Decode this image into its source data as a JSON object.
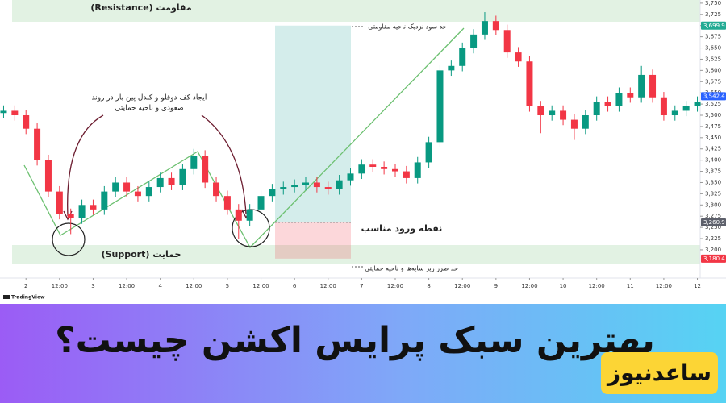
{
  "chart_data": {
    "type": "candlestick",
    "x": [
      -8,
      -4,
      0,
      4,
      8,
      12,
      16,
      20,
      24,
      28,
      32,
      36,
      40,
      44,
      48,
      52,
      56,
      60,
      64,
      68,
      72,
      76,
      80,
      84,
      88,
      92,
      96,
      100,
      104,
      108,
      112,
      116,
      120,
      124,
      128,
      132,
      136,
      140,
      144,
      148,
      152,
      156,
      160,
      164,
      168,
      172,
      176,
      180,
      184,
      188,
      192,
      196,
      200,
      204,
      208,
      212,
      216,
      220,
      224,
      228,
      232,
      236,
      240
    ],
    "open": [
      3505,
      3510,
      3500,
      3470,
      3400,
      3330,
      3280,
      3270,
      3300,
      3290,
      3330,
      3350,
      3330,
      3320,
      3340,
      3360,
      3345,
      3380,
      3410,
      3350,
      3320,
      3290,
      3265,
      3290,
      3320,
      3335,
      3340,
      3345,
      3350,
      3340,
      3335,
      3355,
      3370,
      3390,
      3385,
      3380,
      3375,
      3360,
      3395,
      3440,
      3600,
      3610,
      3650,
      3680,
      3710,
      3690,
      3640,
      3620,
      3520,
      3500,
      3510,
      3490,
      3470,
      3500,
      3530,
      3520,
      3550,
      3540,
      3590,
      3540,
      3500,
      3510,
      3520
    ],
    "high": [
      3522,
      3522,
      3512,
      3482,
      3412,
      3342,
      3292,
      3312,
      3312,
      3342,
      3362,
      3362,
      3342,
      3352,
      3372,
      3372,
      3392,
      3425,
      3422,
      3362,
      3332,
      3302,
      3302,
      3332,
      3347,
      3352,
      3357,
      3362,
      3362,
      3352,
      3367,
      3382,
      3402,
      3402,
      3397,
      3392,
      3387,
      3407,
      3452,
      3612,
      3622,
      3662,
      3692,
      3730,
      3722,
      3702,
      3652,
      3632,
      3532,
      3522,
      3522,
      3502,
      3512,
      3542,
      3542,
      3562,
      3562,
      3610,
      3602,
      3552,
      3522,
      3532,
      3542
    ],
    "low": [
      3493,
      3488,
      3458,
      3388,
      3318,
      3268,
      3235,
      3258,
      3278,
      3278,
      3318,
      3318,
      3308,
      3308,
      3328,
      3333,
      3333,
      3368,
      3338,
      3308,
      3278,
      3225,
      3253,
      3278,
      3308,
      3323,
      3328,
      3333,
      3328,
      3323,
      3323,
      3343,
      3358,
      3373,
      3368,
      3363,
      3348,
      3348,
      3383,
      3428,
      3588,
      3598,
      3638,
      3668,
      3678,
      3628,
      3608,
      3508,
      3460,
      3488,
      3478,
      3445,
      3458,
      3488,
      3508,
      3508,
      3528,
      3528,
      3528,
      3488,
      3488,
      3498,
      3508
    ],
    "close": [
      3510,
      3500,
      3470,
      3400,
      3330,
      3280,
      3270,
      3300,
      3290,
      3330,
      3350,
      3330,
      3320,
      3340,
      3360,
      3345,
      3380,
      3410,
      3350,
      3320,
      3290,
      3265,
      3290,
      3320,
      3335,
      3340,
      3345,
      3350,
      3340,
      3335,
      3355,
      3370,
      3390,
      3385,
      3380,
      3375,
      3360,
      3395,
      3440,
      3600,
      3610,
      3650,
      3680,
      3710,
      3690,
      3640,
      3620,
      3520,
      3500,
      3510,
      3490,
      3470,
      3500,
      3530,
      3520,
      3550,
      3540,
      3590,
      3540,
      3500,
      3510,
      3520,
      3530
    ],
    "up_color": "#089981",
    "down_color": "#f23645",
    "xlim": [
      -9,
      241
    ],
    "xticks": [
      {
        "value": 0,
        "label": "2"
      },
      {
        "value": 12,
        "label": "12:00"
      },
      {
        "value": 24,
        "label": "3"
      },
      {
        "value": 36,
        "label": "12:00"
      },
      {
        "value": 48,
        "label": "4"
      },
      {
        "value": 60,
        "label": "12:00"
      },
      {
        "value": 72,
        "label": "5"
      },
      {
        "value": 84,
        "label": "12:00"
      },
      {
        "value": 96,
        "label": "6"
      },
      {
        "value": 108,
        "label": "12:00"
      },
      {
        "value": 120,
        "label": "7"
      },
      {
        "value": 132,
        "label": "12:00"
      },
      {
        "value": 144,
        "label": "8"
      },
      {
        "value": 156,
        "label": "12:00"
      },
      {
        "value": 168,
        "label": "9"
      },
      {
        "value": 180,
        "label": "12:00"
      },
      {
        "value": 192,
        "label": "10"
      },
      {
        "value": 204,
        "label": "12:00"
      },
      {
        "value": 216,
        "label": "11"
      },
      {
        "value": 228,
        "label": "12:00"
      },
      {
        "value": 240,
        "label": "12"
      }
    ],
    "ylim": [
      3137,
      3757
    ],
    "yticks": [
      {
        "value": 3200,
        "label": "3,200"
      },
      {
        "value": 3225,
        "label": "3,225"
      },
      {
        "value": 3250,
        "label": "3,250"
      },
      {
        "value": 3275,
        "label": "3,275"
      },
      {
        "value": 3300,
        "label": "3,300"
      },
      {
        "value": 3325,
        "label": "3,325"
      },
      {
        "value": 3350,
        "label": "3,350"
      },
      {
        "value": 3375,
        "label": "3,375"
      },
      {
        "value": 3400,
        "label": "3,400"
      },
      {
        "value": 3425,
        "label": "3,425"
      },
      {
        "value": 3450,
        "label": "3,450"
      },
      {
        "value": 3475,
        "label": "3,475"
      },
      {
        "value": 3500,
        "label": "3,500"
      },
      {
        "value": 3525,
        "label": "3,525"
      },
      {
        "value": 3550,
        "label": "3,550"
      },
      {
        "value": 3575,
        "label": "3,575"
      },
      {
        "value": 3600,
        "label": "3,600"
      },
      {
        "value": 3625,
        "label": "3,625"
      },
      {
        "value": 3650,
        "label": "3,650"
      },
      {
        "value": 3675,
        "label": "3,675"
      },
      {
        "value": 3700,
        "label": "3,700"
      },
      {
        "value": 3725,
        "label": "3,725"
      },
      {
        "value": 3750,
        "label": "3,750"
      }
    ],
    "trade_box": {
      "target": {
        "value": 3699.9,
        "label": "3,699.9",
        "color": "#22ab94"
      },
      "entry": {
        "value": 3260.9,
        "label": "3,260.9",
        "color": "#5d606b"
      },
      "stop": {
        "value": 3180.4,
        "label": "3,180.4",
        "color": "#f23645"
      }
    },
    "last_price": {
      "value": 3542.4,
      "label": "3,542.4",
      "color": "#2962ff"
    },
    "annotations": [
      "مقاومت (Resistance)",
      "حمایت (Support)",
      "ایجاد کف دوقلو و کندل پین بار در روند",
      "صعودی و ناحیه حمایتی",
      "حد سود نزدیک ناحیه مقاومتی",
      "نقطه ورود مناسب",
      "حد ضرر زیر سایه‌ها و ناحیه حمایتی"
    ],
    "watermark": "TradingView"
  },
  "banner": {
    "title": "بهترین سبک پرایس اکشن چیست؟",
    "logo": "ساعدنیوز"
  }
}
